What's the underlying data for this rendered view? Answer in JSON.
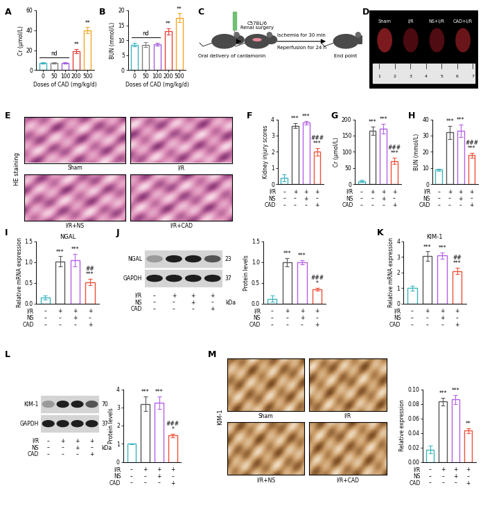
{
  "chart_data": [
    {
      "panel": "A",
      "type": "bar",
      "categories": [
        "0",
        "50",
        "100",
        "200",
        "500"
      ],
      "values": [
        7,
        7,
        7,
        19,
        40
      ],
      "errors": [
        0.5,
        0.5,
        0.6,
        2,
        3
      ],
      "colors": [
        "#3bb5c0",
        "#7f7f7f",
        "#a55ee0",
        "#e8423a",
        "#f5a623"
      ],
      "xlabel": "Doses of CAD (mg/kg/d)",
      "ylabel": "Cr (μmol/L)",
      "ylim": [
        0,
        60
      ],
      "yticks": [
        0,
        20,
        40,
        60
      ],
      "annotations": [
        [],
        [],
        [],
        [
          "**"
        ],
        [
          "**"
        ]
      ],
      "bracket_label": "nd",
      "bracket_categories": [
        "0",
        "50",
        "100"
      ]
    },
    {
      "panel": "B",
      "type": "bar",
      "categories": [
        "0",
        "50",
        "100",
        "200",
        "500"
      ],
      "values": [
        8.5,
        8.5,
        8.7,
        13,
        17.5
      ],
      "errors": [
        0.5,
        0.8,
        0.5,
        1,
        1.5
      ],
      "colors": [
        "#3bb5c0",
        "#7f7f7f",
        "#a55ee0",
        "#e8423a",
        "#f5a623"
      ],
      "xlabel": "Doses of CAD (mg/kg/d)",
      "ylabel": "BUN (mmol/L)",
      "ylim": [
        0,
        20
      ],
      "yticks": [
        0,
        5,
        10,
        15,
        20
      ],
      "annotations": [
        [],
        [],
        [],
        [
          "**"
        ],
        [
          "**"
        ]
      ],
      "bracket_label": "nd",
      "bracket_categories": [
        "0",
        "50",
        "100"
      ]
    },
    {
      "panel": "F",
      "type": "bar",
      "categories": [
        null,
        null,
        null,
        null
      ],
      "values": [
        0.4,
        3.6,
        3.8,
        2.0
      ],
      "errors": [
        0.2,
        0.15,
        0.1,
        0.25
      ],
      "colors": [
        "#3bb5c0",
        "#555555",
        "#b45ee8",
        "#ef4f37"
      ],
      "ylabel": "Kidney injury scores",
      "ylim": [
        0,
        4
      ],
      "yticks": [
        0,
        1,
        2,
        3,
        4
      ],
      "annotations": [
        [],
        [
          "***"
        ],
        [
          "***"
        ],
        [
          "###",
          "***"
        ]
      ],
      "conditions": [
        {
          "label": "I/R",
          "signs": [
            "–",
            "+",
            "+",
            "+"
          ]
        },
        {
          "label": "NS",
          "signs": [
            "–",
            "–",
            "+",
            "–"
          ]
        },
        {
          "label": "CAD",
          "signs": [
            "–",
            "–",
            "–",
            "+"
          ]
        }
      ]
    },
    {
      "panel": "G",
      "type": "bar",
      "categories": [
        null,
        null,
        null,
        null
      ],
      "values": [
        10,
        165,
        172,
        72
      ],
      "errors": [
        3,
        12,
        15,
        10
      ],
      "colors": [
        "#3bb5c0",
        "#555555",
        "#b45ee8",
        "#ef4f37"
      ],
      "ylabel": "Cr (μmol/L)",
      "ylim": [
        0,
        200
      ],
      "yticks": [
        0,
        50,
        100,
        150,
        200
      ],
      "annotations": [
        [],
        [
          "***"
        ],
        [
          "***"
        ],
        [
          "###",
          "***"
        ]
      ],
      "conditions": [
        {
          "label": "I/R",
          "signs": [
            "–",
            "+",
            "+",
            "+"
          ]
        },
        {
          "label": "NS",
          "signs": [
            "–",
            "–",
            "+",
            "–"
          ]
        },
        {
          "label": "CAD",
          "signs": [
            "–",
            "–",
            "–",
            "+"
          ]
        }
      ]
    },
    {
      "panel": "H",
      "type": "bar",
      "categories": [
        null,
        null,
        null,
        null
      ],
      "values": [
        9,
        32,
        33,
        18
      ],
      "errors": [
        0.7,
        4,
        4,
        1.5
      ],
      "colors": [
        "#3bb5c0",
        "#555555",
        "#b45ee8",
        "#ef4f37"
      ],
      "ylabel": "BUN (mmol/L)",
      "ylim": [
        0,
        40
      ],
      "yticks": [
        0,
        10,
        20,
        30,
        40
      ],
      "annotations": [
        [],
        [
          "***"
        ],
        [
          "***"
        ],
        [
          "###",
          "***"
        ]
      ],
      "conditions": [
        {
          "label": "I/R",
          "signs": [
            "–",
            "+",
            "+",
            "+"
          ]
        },
        {
          "label": "NS",
          "signs": [
            "–",
            "–",
            "+",
            "–"
          ]
        },
        {
          "label": "CAD",
          "signs": [
            "–",
            "–",
            "–",
            "+"
          ]
        }
      ]
    },
    {
      "panel": "I",
      "type": "bar",
      "categories": [
        null,
        null,
        null,
        null
      ],
      "values": [
        0.15,
        1.02,
        1.05,
        0.52
      ],
      "errors": [
        0.05,
        0.12,
        0.15,
        0.08
      ],
      "colors": [
        "#3bb5c0",
        "#555555",
        "#b45ee8",
        "#ef4f37"
      ],
      "title": "NGAL",
      "ylabel": "Relative mRNA expression",
      "ylim": [
        0,
        1.5
      ],
      "yticks": [
        {
          "value": 0,
          "label": "0.0"
        },
        0.5,
        {
          "value": 1,
          "label": "1.0"
        },
        1.5
      ],
      "annotations": [
        [],
        [
          "***"
        ],
        [
          "***"
        ],
        [
          "##",
          "***"
        ]
      ],
      "conditions": [
        {
          "label": "I/R",
          "signs": [
            "–",
            "+",
            "+",
            "+"
          ]
        },
        {
          "label": "NS",
          "signs": [
            "–",
            "–",
            "+",
            "–"
          ]
        },
        {
          "label": "CAD",
          "signs": [
            "–",
            "–",
            "–",
            "+"
          ]
        }
      ]
    },
    {
      "type": "bar",
      "categories": [
        null,
        null,
        null,
        null
      ],
      "values": [
        0.12,
        1.0,
        1.0,
        0.35
      ],
      "errors": [
        0.08,
        0.1,
        0.05,
        0.03
      ],
      "colors": [
        "#3bb5c0",
        "#555555",
        "#b45ee8",
        "#ef4f37"
      ],
      "ylabel": "Protein levels",
      "ylim": [
        0,
        1.5
      ],
      "yticks": [
        {
          "value": 0,
          "label": "0.0"
        },
        0.5,
        {
          "value": 1,
          "label": "1.0"
        },
        1.5
      ],
      "annotations": [
        [],
        [
          "***"
        ],
        [
          "***"
        ],
        [
          "###",
          "*"
        ]
      ],
      "conditions": [
        {
          "label": "I/R",
          "signs": [
            "–",
            "+",
            "+",
            "+"
          ]
        },
        {
          "label": "NS",
          "signs": [
            "–",
            "–",
            "+",
            "–"
          ]
        },
        {
          "label": "CAD",
          "signs": [
            "–",
            "–",
            "–",
            "+"
          ]
        }
      ]
    },
    {
      "panel": "K",
      "type": "bar",
      "categories": [
        null,
        null,
        null,
        null
      ],
      "values": [
        1.0,
        3.05,
        3.1,
        2.1
      ],
      "errors": [
        0.15,
        0.3,
        0.2,
        0.2
      ],
      "colors": [
        "#3bb5c0",
        "#555555",
        "#b45ee8",
        "#ef4f37"
      ],
      "title": "KIM-1",
      "ylabel": "Relative mRNA expression",
      "ylim": [
        0,
        4
      ],
      "yticks": [
        0,
        1,
        2,
        3,
        4
      ],
      "annotations": [
        [],
        [
          "***"
        ],
        [
          "***"
        ],
        [
          "##",
          "***"
        ]
      ],
      "conditions": [
        {
          "label": "I/R",
          "signs": [
            "–",
            "+",
            "+",
            "+"
          ]
        },
        {
          "label": "NS",
          "signs": [
            "–",
            "–",
            "+",
            "–"
          ]
        },
        {
          "label": "CAD",
          "signs": [
            "–",
            "–",
            "–",
            "+"
          ]
        }
      ]
    },
    {
      "type": "bar",
      "categories": [
        null,
        null,
        null,
        null
      ],
      "values": [
        1.0,
        3.2,
        3.25,
        1.45
      ],
      "errors": [
        0.02,
        0.4,
        0.35,
        0.1
      ],
      "colors": [
        "#3bb5c0",
        "#555555",
        "#b45ee8",
        "#ef4f37"
      ],
      "ylabel": "Protein levels",
      "ylim": [
        0,
        4
      ],
      "yticks": [
        0,
        1,
        2,
        3,
        4
      ],
      "annotations": [
        [],
        [
          "***"
        ],
        [
          "***"
        ],
        [
          "###",
          "*"
        ]
      ],
      "conditions": [
        {
          "label": "I/R",
          "signs": [
            "–",
            "+",
            "+",
            "+"
          ]
        },
        {
          "label": "NS",
          "signs": [
            "–",
            "–",
            "+",
            "–"
          ]
        },
        {
          "label": "CAD",
          "signs": [
            "–",
            "–",
            "–",
            "+"
          ]
        }
      ]
    },
    {
      "panel": "M",
      "type": "bar",
      "categories": [
        null,
        null,
        null,
        null
      ],
      "values": [
        0.017,
        0.083,
        0.086,
        0.043
      ],
      "errors": [
        0.005,
        0.005,
        0.006,
        0.003
      ],
      "colors": [
        "#3bb5c0",
        "#555555",
        "#b45ee8",
        "#ef4f37"
      ],
      "ylabel": "Relative expression",
      "ylim": [
        0,
        0.1
      ],
      "yticks": [
        {
          "value": 0,
          "label": "0.00"
        },
        0.02,
        0.04,
        0.06,
        0.08,
        {
          "value": 0.1,
          "label": "0.10"
        }
      ],
      "annotations": [
        [],
        [
          "***"
        ],
        [
          "***"
        ],
        [
          "**"
        ]
      ],
      "conditions": [
        {
          "label": "I/R",
          "signs": [
            "–",
            "+",
            "+",
            "+"
          ]
        },
        {
          "label": "NS",
          "signs": [
            "–",
            "–",
            "+",
            "–"
          ]
        },
        {
          "label": "CAD",
          "signs": [
            "–",
            "–",
            "–",
            "+"
          ]
        }
      ]
    }
  ],
  "schematic": {
    "panel": "C",
    "stages": [
      "Oral delivery of cardamonin",
      "C57BL/6\nRenal surgery",
      "End point"
    ],
    "transition": [
      "Ischemia for 30 min",
      "Reperfusion for 24 h"
    ]
  },
  "photo": {
    "panel": "D",
    "labels": [
      "Sham",
      "I/R",
      "NS+I/R",
      "CAD+I/R"
    ],
    "ruler": [
      "1",
      "2",
      "3",
      "4",
      "5",
      "6",
      "7"
    ]
  },
  "histology": [
    {
      "panel": "E",
      "stain": "HE staining",
      "labels": [
        "Sham",
        "I/R",
        "I/R+NS",
        "I/R+CAD"
      ]
    },
    {
      "stain": "KIM-1",
      "labels": [
        "Sham",
        "I/R",
        "I/R+NS",
        "I/R+CAD"
      ]
    }
  ],
  "blots": [
    {
      "panel": "J",
      "rows": [
        {
          "label": "NGAL",
          "kda": "23"
        },
        {
          "label": "GAPDH",
          "kda": "37"
        }
      ],
      "unit": "kDa",
      "conditions": [
        {
          "label": "I/R",
          "signs": [
            "–",
            "+",
            "+",
            "+"
          ]
        },
        {
          "label": "NS",
          "signs": [
            "–",
            "–",
            "+",
            "–"
          ]
        },
        {
          "label": "CAD",
          "signs": [
            "–",
            "–",
            "–",
            "+"
          ]
        }
      ]
    },
    {
      "panel": "L",
      "rows": [
        {
          "label": "KIM-1",
          "kda": "70"
        },
        {
          "label": "GAPDH",
          "kda": "37"
        }
      ],
      "unit": "kDa",
      "conditions": [
        {
          "label": "I/R",
          "signs": [
            "–",
            "+",
            "+",
            "+"
          ]
        },
        {
          "label": "NS",
          "signs": [
            "–",
            "–",
            "+",
            "–"
          ]
        },
        {
          "label": "CAD",
          "signs": [
            "–",
            "–",
            "–",
            "+"
          ]
        }
      ]
    }
  ]
}
